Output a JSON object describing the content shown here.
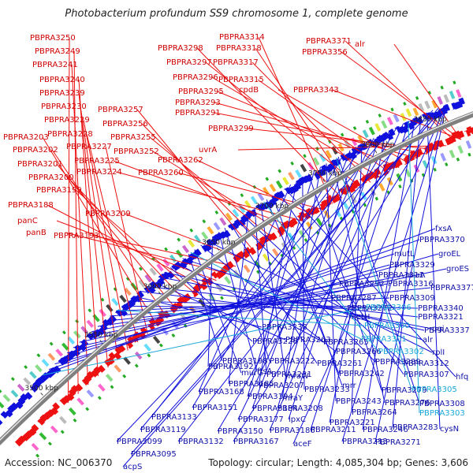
{
  "title": "Photobacterium profundum SS9 chromosome 1, complete genome",
  "accession": "Accession: NC_006370",
  "summary": "Topology: circular; Length: 4,085,304 bp; Genes: 3,606",
  "ticks": [
    "3850 kbp",
    "3800 kbp",
    "3750 kbp",
    "3700 kbp",
    "3650 kbp",
    "3600 kbp",
    "3550 kbp",
    "3500 kbp"
  ],
  "colors": {
    "forward": "#ee1111",
    "reverse": "#1111dd",
    "highlight": "#19a8d8",
    "backbone": "#808080"
  },
  "forward_labels": [
    "PBPRA3250",
    "PBPRA3249",
    "PBPRA3241",
    "PBPRA3240",
    "PBPRA3239",
    "PBPRA3230",
    "PBPRA3229",
    "PBPRA3228",
    "PBPRA3227",
    "PBPRA3203",
    "PBPRA3202",
    "PBPRA3201",
    "PBPRA3200",
    "PBPRA3199",
    "PBPRA3188",
    "panC",
    "panB",
    "PBPRA3193",
    "PBPRA3209",
    "PBPRA3257",
    "PBPRA3256",
    "PBPRA3255",
    "PBPRA3252",
    "PBPRA3225",
    "PBPRA3224",
    "PBPRA3262",
    "PBPRA3260",
    "PBPRA3314",
    "PBPRA3298",
    "PBPRA3318",
    "PBPRA3297",
    "PBPRA3317",
    "PBPRA3296",
    "PBPRA3315",
    "PBPRA3295",
    "cpdB",
    "PBPRA3293",
    "PBPRA3291",
    "PBPRA3299",
    "uvrA",
    "PBPRA3371",
    "alr",
    "PBPRA3356",
    "PBPRA3343"
  ],
  "reverse_labels": [
    "fxsA",
    "PBPRA3370",
    "groEL",
    "mutL",
    "PBPRA3329",
    "groES",
    "PBPRA3311",
    "miaA",
    "PBPRA3292",
    "PBPRA3316",
    "PBPRA3377",
    "PBPRA3287",
    "PBPRA3309",
    "PBPRA3272",
    "PBPRA3340",
    "PBPRA3238",
    "metH",
    "PBPRA3321",
    "PBPRA3263",
    "pgi",
    "PBPRA3337",
    "PBPRA3226",
    "PBPRA3265",
    "alr",
    "PBPRA3198",
    "murG",
    "PBPRA3266",
    "rplI",
    "PBPRA3192",
    "ftsA",
    "PBPRA3222",
    "PBPRA3261",
    "PBPRA3289",
    "PBPRA3312",
    "PBPRA3185",
    "PBPRA3231",
    "mraW",
    "PBPRA3242",
    "mrr",
    "PBPRA3307",
    "hfq",
    "PBPRA3168",
    "PBPRA3207",
    "PBPRA3233",
    "PBPRA3279",
    "PBPRA3194",
    "mraY",
    "PBPRA3243",
    "PBPRA3276",
    "PBPRA3308",
    "PBPRA3151",
    "PBPRA3184",
    "PBPRA3208",
    "PBPRA3264",
    "PBPRA3133",
    "PBPRA3177",
    "lpxC",
    "PBPRA3221",
    "PBPRA3119",
    "PBPRA3150",
    "PBPRA3186",
    "PBPRA3211",
    "PBPRA3246",
    "PBPRA3283",
    "cysN",
    "PBPRA3099",
    "PBPRA3132",
    "PBPRA3167",
    "aceF",
    "PBPRA3213",
    "PBPRA3271",
    "PBPRA3095",
    "acpS"
  ],
  "highlight_labels": [
    "PBPRA3306",
    "PBPRA3300",
    "PBPRA3301",
    "PBPRA3302",
    "PBPRA3305",
    "PBPRA3303"
  ]
}
